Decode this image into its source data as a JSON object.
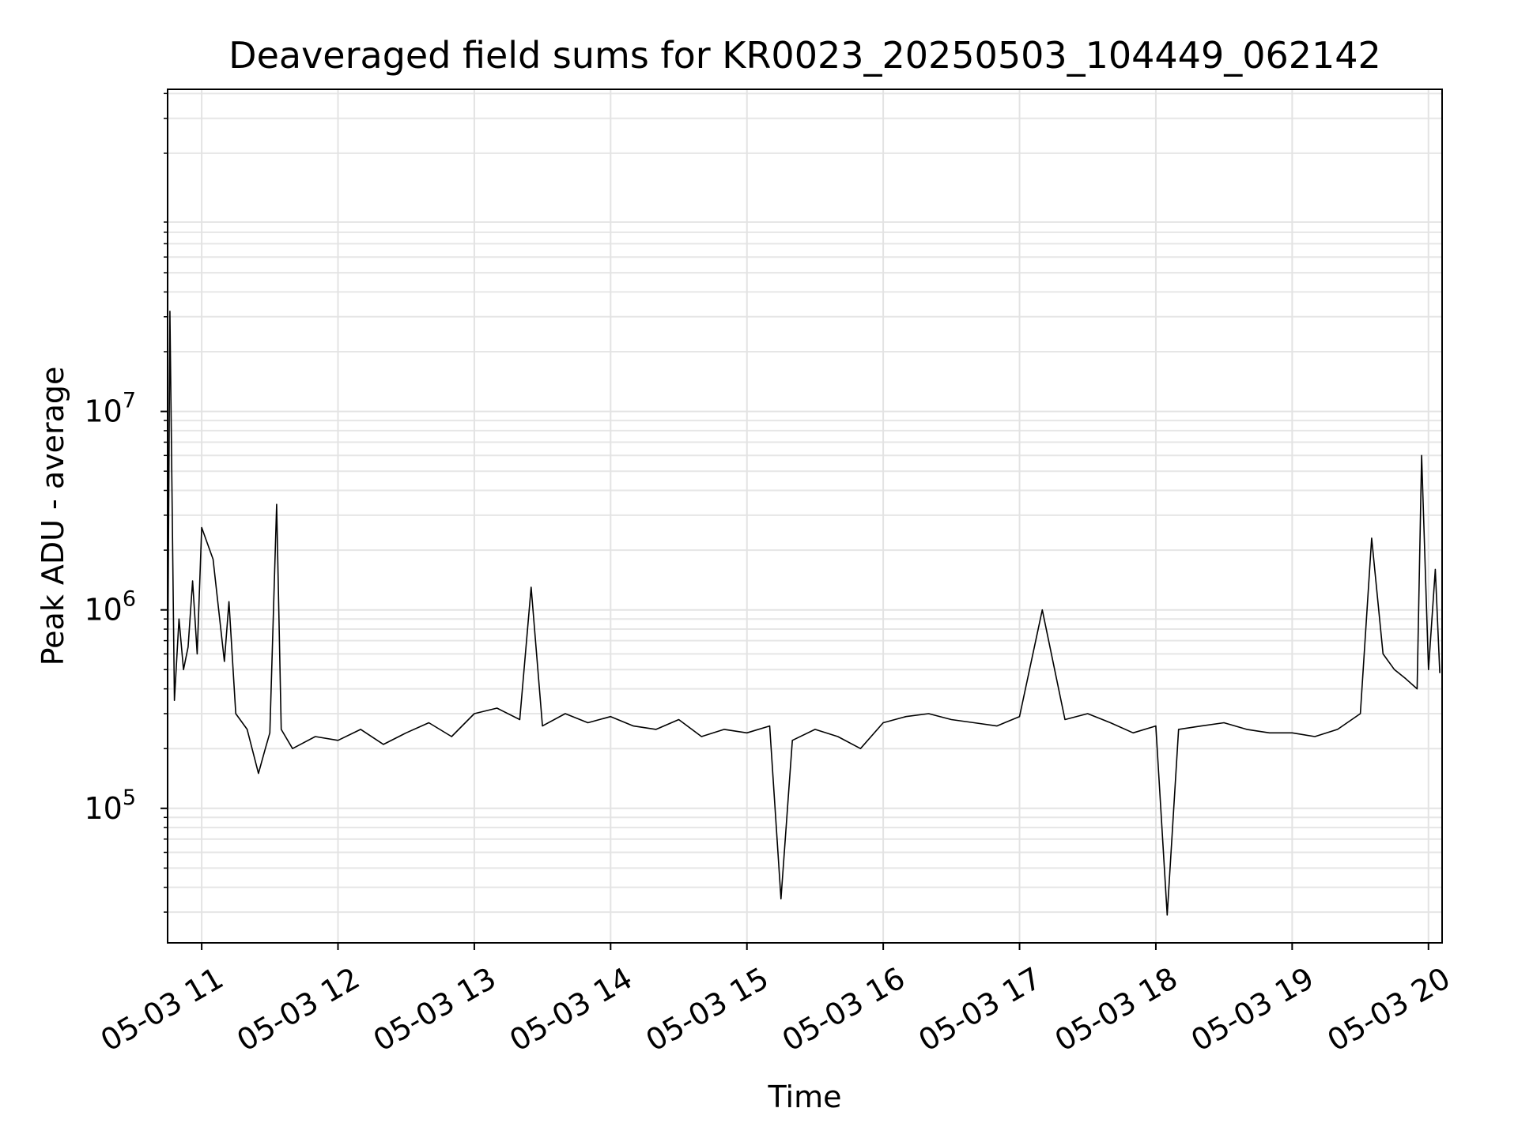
{
  "chart_data": {
    "type": "line",
    "title": "Deaveraged field sums for KR0023_20250503_104449_062142",
    "xlabel": "Time",
    "ylabel": "Peak ADU - average",
    "x_scale": "time",
    "y_scale": "log",
    "xlim": [
      "05-03 10:45",
      "05-03 20:06"
    ],
    "ylim": [
      21000,
      420000000
    ],
    "grid": true,
    "legend": "none",
    "line_color": "#000000",
    "x_ticks": [
      {
        "value": "05-03 11:00",
        "label": "05-03 11"
      },
      {
        "value": "05-03 12:00",
        "label": "05-03 12"
      },
      {
        "value": "05-03 13:00",
        "label": "05-03 13"
      },
      {
        "value": "05-03 14:00",
        "label": "05-03 14"
      },
      {
        "value": "05-03 15:00",
        "label": "05-03 15"
      },
      {
        "value": "05-03 16:00",
        "label": "05-03 16"
      },
      {
        "value": "05-03 17:00",
        "label": "05-03 17"
      },
      {
        "value": "05-03 18:00",
        "label": "05-03 18"
      },
      {
        "value": "05-03 19:00",
        "label": "05-03 19"
      },
      {
        "value": "05-03 20:00",
        "label": "05-03 20"
      }
    ],
    "y_ticks": [
      {
        "value": 100000,
        "base": "10",
        "exp": "5"
      },
      {
        "value": 1000000,
        "base": "10",
        "exp": "6"
      },
      {
        "value": 10000000,
        "base": "10",
        "exp": "7"
      }
    ],
    "series": [
      {
        "x": [
          "05-03 10:45",
          "05-03 10:46",
          "05-03 10:48",
          "05-03 10:50",
          "05-03 10:52",
          "05-03 10:54",
          "05-03 10:56",
          "05-03 10:58",
          "05-03 11:00",
          "05-03 11:05",
          "05-03 11:10",
          "05-03 11:12",
          "05-03 11:15",
          "05-03 11:20",
          "05-03 11:25",
          "05-03 11:28",
          "05-03 11:30",
          "05-03 11:33",
          "05-03 11:35",
          "05-03 11:40",
          "05-03 11:50",
          "05-03 12:00",
          "05-03 12:10",
          "05-03 12:20",
          "05-03 12:30",
          "05-03 12:40",
          "05-03 12:50",
          "05-03 13:00",
          "05-03 13:10",
          "05-03 13:20",
          "05-03 13:25",
          "05-03 13:30",
          "05-03 13:40",
          "05-03 13:50",
          "05-03 14:00",
          "05-03 14:10",
          "05-03 14:20",
          "05-03 14:30",
          "05-03 14:40",
          "05-03 14:50",
          "05-03 15:00",
          "05-03 15:10",
          "05-03 15:15",
          "05-03 15:20",
          "05-03 15:30",
          "05-03 15:40",
          "05-03 15:50",
          "05-03 16:00",
          "05-03 16:10",
          "05-03 16:20",
          "05-03 16:30",
          "05-03 16:40",
          "05-03 16:50",
          "05-03 17:00",
          "05-03 17:10",
          "05-03 17:20",
          "05-03 17:30",
          "05-03 17:40",
          "05-03 17:50",
          "05-03 18:00",
          "05-03 18:05",
          "05-03 18:10",
          "05-03 18:20",
          "05-03 18:30",
          "05-03 18:40",
          "05-03 18:50",
          "05-03 19:00",
          "05-03 19:10",
          "05-03 19:20",
          "05-03 19:30",
          "05-03 19:35",
          "05-03 19:40",
          "05-03 19:45",
          "05-03 19:50",
          "05-03 19:55",
          "05-03 19:57",
          "05-03 20:00",
          "05-03 20:03",
          "05-03 20:05"
        ],
        "values": [
          400000,
          32000000,
          350000,
          900000,
          500000,
          650000,
          1400000,
          600000,
          2600000,
          1800000,
          550000,
          1100000,
          300000,
          250000,
          150000,
          200000,
          240000,
          3400000,
          250000,
          200000,
          230000,
          220000,
          250000,
          210000,
          240000,
          270000,
          230000,
          300000,
          320000,
          280000,
          1300000,
          260000,
          300000,
          270000,
          290000,
          260000,
          250000,
          280000,
          230000,
          250000,
          240000,
          260000,
          35000,
          220000,
          250000,
          230000,
          200000,
          270000,
          290000,
          300000,
          280000,
          270000,
          260000,
          290000,
          1000000,
          280000,
          300000,
          270000,
          240000,
          260000,
          29000,
          250000,
          260000,
          270000,
          250000,
          240000,
          240000,
          230000,
          250000,
          300000,
          2300000,
          600000,
          500000,
          450000,
          400000,
          6000000,
          500000,
          1600000,
          480000
        ]
      }
    ]
  }
}
